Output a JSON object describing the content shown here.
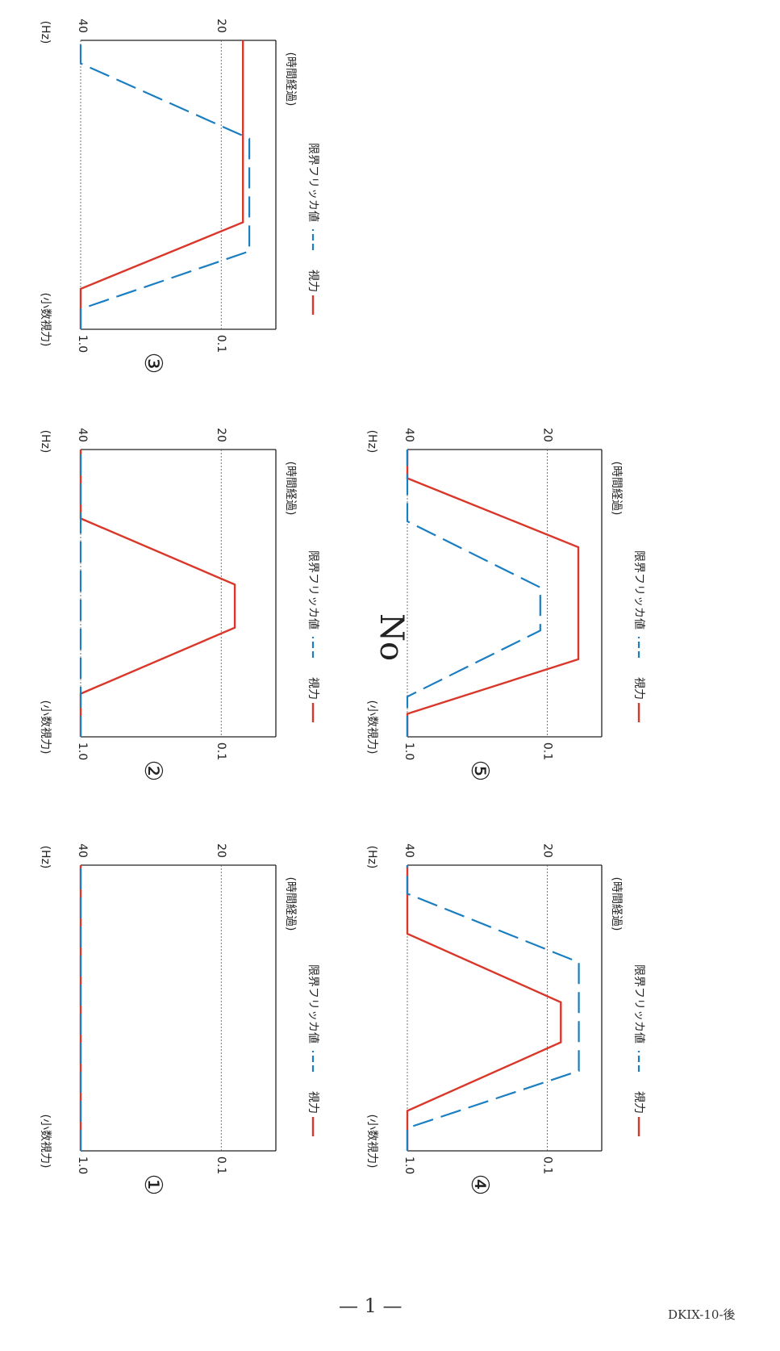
{
  "page": {
    "title": "No. 1",
    "page_number": "— 1 —",
    "doc_code": "DKIX-10-後"
  },
  "colors": {
    "visual_acuity": "#d9372a",
    "flicker": "#1a7ec0",
    "axis": "#222222",
    "grid": "#555555"
  },
  "chart_data": [
    {
      "id": "①",
      "type": "line",
      "xlabel": "(時間経過)",
      "y_left_label": "(小数視力)",
      "y_right_label": "(Hz)",
      "y_left_ticks": [
        "1.0",
        "0.1"
      ],
      "y_right_ticks": [
        "40",
        "20"
      ],
      "legend": [
        {
          "label": "視力"
        },
        {
          "label": "限界フリッカ値"
        }
      ],
      "series": [
        {
          "key": "visual_acuity",
          "points": [
            [
              0,
              1.0
            ],
            [
              100,
              1.0
            ]
          ]
        },
        {
          "key": "flicker",
          "points": [
            [
              0,
              40
            ],
            [
              100,
              40
            ]
          ]
        }
      ]
    },
    {
      "id": "②",
      "type": "line",
      "xlabel": "(時間経過)",
      "y_left_label": "(小数視力)",
      "y_right_label": "(Hz)",
      "y_left_ticks": [
        "1.0",
        "0.1"
      ],
      "y_right_ticks": [
        "40",
        "20"
      ],
      "legend": [
        {
          "label": "視力"
        },
        {
          "label": "限界フリッカ値"
        }
      ],
      "series": [
        {
          "key": "visual_acuity",
          "points": [
            [
              0,
              1.0
            ],
            [
              15,
              1.0
            ],
            [
              38,
              0.08
            ],
            [
              53,
              0.08
            ],
            [
              76,
              1.0
            ],
            [
              100,
              1.0
            ]
          ]
        },
        {
          "key": "flicker",
          "points": [
            [
              0,
              40
            ],
            [
              100,
              40
            ]
          ]
        }
      ]
    },
    {
      "id": "③",
      "type": "line",
      "xlabel": "(時間経過)",
      "y_left_label": "(小数視力)",
      "y_right_label": "(Hz)",
      "y_left_ticks": [
        "1.0",
        "0.1"
      ],
      "y_right_ticks": [
        "40",
        "20"
      ],
      "legend": [
        {
          "label": "視力"
        },
        {
          "label": "限界フリッカ値"
        }
      ],
      "series": [
        {
          "key": "visual_acuity",
          "points": [
            [
              0,
              1.0
            ],
            [
              14,
              1.0
            ],
            [
              37,
              0.07
            ],
            [
              100,
              0.07
            ]
          ]
        },
        {
          "key": "flicker",
          "points": [
            [
              0,
              40
            ],
            [
              7,
              40
            ],
            [
              27,
              16
            ],
            [
              66,
              16
            ],
            [
              92,
              40
            ],
            [
              100,
              40
            ]
          ]
        }
      ]
    },
    {
      "id": "④",
      "type": "line",
      "xlabel": "(時間経過)",
      "y_left_label": "(小数視力)",
      "y_right_label": "(Hz)",
      "y_left_ticks": [
        "1.0",
        "0.1"
      ],
      "y_right_ticks": [
        "40",
        "20"
      ],
      "legend": [
        {
          "label": "視力"
        },
        {
          "label": "限界フリッカ値"
        }
      ],
      "series": [
        {
          "key": "visual_acuity",
          "points": [
            [
              0,
              1.0
            ],
            [
              14,
              1.0
            ],
            [
              38,
              0.08
            ],
            [
              52,
              0.08
            ],
            [
              76,
              1.0
            ],
            [
              100,
              1.0
            ]
          ]
        },
        {
          "key": "flicker",
          "points": [
            [
              0,
              40
            ],
            [
              8,
              40
            ],
            [
              28,
              15.5
            ],
            [
              66,
              15.5
            ],
            [
              90,
              40
            ],
            [
              100,
              40
            ]
          ]
        }
      ]
    },
    {
      "id": "⑤",
      "type": "line",
      "xlabel": "(時間経過)",
      "y_left_label": "(小数視力)",
      "y_right_label": "(Hz)",
      "y_left_ticks": [
        "1.0",
        "0.1"
      ],
      "y_right_ticks": [
        "40",
        "20"
      ],
      "legend": [
        {
          "label": "視力"
        },
        {
          "label": "限界フリッカ値"
        }
      ],
      "series": [
        {
          "key": "visual_acuity",
          "points": [
            [
              0,
              1.0
            ],
            [
              8,
              1.0
            ],
            [
              27,
              0.06
            ],
            [
              66,
              0.06
            ],
            [
              90,
              1.0
            ],
            [
              100,
              1.0
            ]
          ]
        },
        {
          "key": "flicker",
          "points": [
            [
              0,
              40
            ],
            [
              14,
              40
            ],
            [
              37,
              21
            ],
            [
              52,
              21
            ],
            [
              75,
              40
            ],
            [
              100,
              40
            ]
          ]
        }
      ]
    }
  ]
}
